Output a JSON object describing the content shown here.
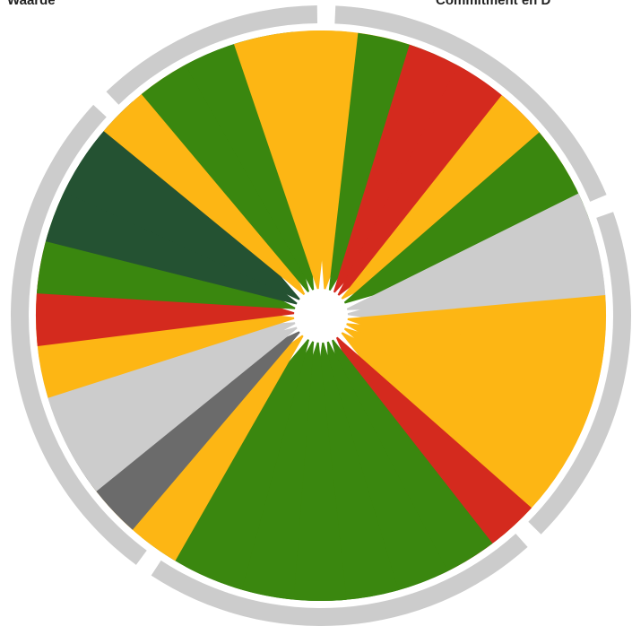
{
  "labels": {
    "top_left": "Waarde",
    "top_right": "Commitment en D"
  },
  "chart_data": {
    "type": "radial-bar",
    "title": "",
    "status_colors": {
      "green": "#3a870f",
      "dark-green": "#245232",
      "orange": "#fdb614",
      "red": "#d42a1e",
      "grey": "#cccccc",
      "dark-grey": "#6b6b6b"
    },
    "ring_color": "#cccccc",
    "groups": [
      {
        "name": "Commitment en D",
        "segments": [
          "orange",
          "green",
          "red",
          "red",
          "orange",
          "green"
        ]
      },
      {
        "name": "",
        "segments": [
          "grey",
          "grey",
          "orange",
          "orange",
          "orange",
          "orange"
        ]
      },
      {
        "name": "",
        "segments": [
          "red",
          "green",
          "green",
          "green",
          "green",
          "green",
          "green"
        ]
      },
      {
        "name": "",
        "segments": [
          "orange",
          "dark-grey",
          "grey",
          "grey",
          "orange",
          "red",
          "green",
          "dark-green",
          "dark-green"
        ]
      },
      {
        "name": "Waarde",
        "segments": [
          "orange",
          "green",
          "green",
          "orange"
        ]
      }
    ]
  }
}
